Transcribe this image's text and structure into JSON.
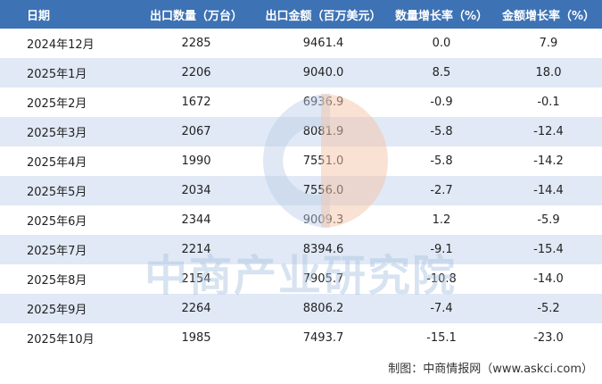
{
  "table": {
    "header": [
      "日期",
      "出口数量（万台）",
      "出口金额（百万美元）",
      "数量增长率（%）",
      "金额增长率（%）"
    ],
    "rows": [
      [
        "2024年12月",
        "2285",
        "9461.4",
        "0.0",
        "7.9"
      ],
      [
        "2025年1月",
        "2206",
        "9040.0",
        "8.5",
        "18.0"
      ],
      [
        "2025年2月",
        "1672",
        "6936.9",
        "-0.9",
        "-0.1"
      ],
      [
        "2025年3月",
        "2067",
        "8081.9",
        "-5.8",
        "-12.4"
      ],
      [
        "2025年4月",
        "1990",
        "7551.0",
        "-5.8",
        "-14.2"
      ],
      [
        "2025年5月",
        "2034",
        "7556.0",
        "-2.7",
        "-14.4"
      ],
      [
        "2025年6月",
        "2344",
        "9009.3",
        "1.2",
        "-5.9"
      ],
      [
        "2025年7月",
        "2214",
        "8394.6",
        "-9.1",
        "-15.4"
      ],
      [
        "2025年8月",
        "2154",
        "7905.7",
        "-10.8",
        "-14.0"
      ],
      [
        "2025年9月",
        "2264",
        "8806.2",
        "-7.4",
        "-5.2"
      ],
      [
        "2025年10月",
        "1985",
        "7493.7",
        "-15.1",
        "-23.0"
      ]
    ]
  },
  "watermark": "中商产业研究院",
  "footer": "制图：中商情报网（www.askci.com）"
}
